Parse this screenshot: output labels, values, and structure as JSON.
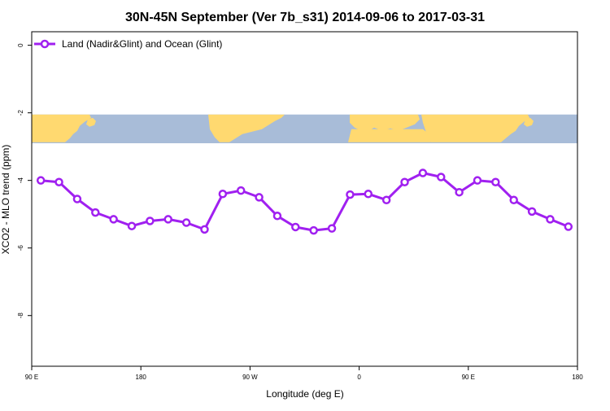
{
  "colors": {
    "series": "#a020f0",
    "land": "#ffd970",
    "ocean": "#a8bcd8",
    "axis": "#000000",
    "background": "#ffffff"
  },
  "chart_data": {
    "type": "line",
    "title": "30N-45N September (Ver 7b_s31)   2014-09-06 to 2017-03-31",
    "xlabel": "Longitude (deg E)",
    "ylabel": "XCO2 - MLO trend (ppm)",
    "xlim": [
      90,
      540
    ],
    "ylim": [
      -9.5,
      0.4
    ],
    "x_ticks": [
      {
        "value": 90,
        "label": "90 E"
      },
      {
        "value": 180,
        "label": "180"
      },
      {
        "value": 270,
        "label": "90 W"
      },
      {
        "value": 360,
        "label": "0"
      },
      {
        "value": 450,
        "label": "90 E"
      },
      {
        "value": 540,
        "label": "180"
      }
    ],
    "y_ticks": [
      {
        "value": 0,
        "label": "0"
      },
      {
        "value": -2,
        "label": "-2"
      },
      {
        "value": -4,
        "label": "-4"
      },
      {
        "value": -6,
        "label": "-6"
      },
      {
        "value": -8,
        "label": "-8"
      }
    ],
    "grid": false,
    "legend_position": "top-left",
    "map_strip": {
      "y_top": -2.05,
      "y_bottom": -2.9
    },
    "series": [
      {
        "name": "Land (Nadir&Glint) and Ocean (Glint)",
        "x": [
          97.5,
          112.5,
          127.5,
          142.5,
          157.5,
          172.5,
          187.5,
          202.5,
          217.5,
          232.5,
          247.5,
          262.5,
          277.5,
          292.5,
          307.5,
          322.5,
          337.5,
          352.5,
          367.5,
          382.5,
          397.5,
          412.5,
          427.5,
          442.5,
          457.5,
          472.5,
          487.5,
          502.5,
          517.5,
          532.5
        ],
        "y": [
          -4.0,
          -4.05,
          -4.55,
          -4.95,
          -5.15,
          -5.35,
          -5.2,
          -5.15,
          -5.25,
          -5.45,
          -4.4,
          -4.3,
          -4.5,
          -5.05,
          -5.38,
          -5.48,
          -5.42,
          -4.42,
          -4.4,
          -4.58,
          -4.05,
          -3.78,
          -3.9,
          -4.35,
          -4.0,
          -4.05,
          -4.58,
          -4.92,
          -5.15,
          -5.37
        ]
      }
    ]
  }
}
